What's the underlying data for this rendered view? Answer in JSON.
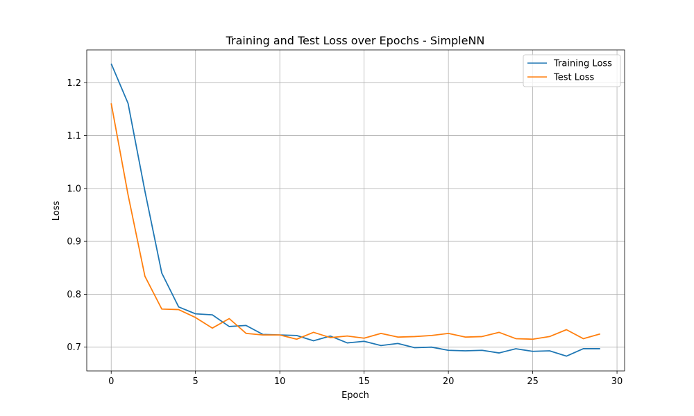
{
  "chart_data": {
    "type": "line",
    "title": "Training and Test Loss over Epochs - SimpleNN",
    "xlabel": "Epoch",
    "ylabel": "Loss",
    "xlim": [
      -1.45,
      30.45
    ],
    "ylim": [
      0.655,
      1.262
    ],
    "xticks": [
      0,
      5,
      10,
      15,
      20,
      25,
      30
    ],
    "yticks": [
      0.7,
      0.8,
      0.9,
      1.0,
      1.1,
      1.2
    ],
    "ytick_labels": [
      "0.7",
      "0.8",
      "0.9",
      "1.0",
      "1.1",
      "1.2"
    ],
    "grid": true,
    "legend_position": "top-right",
    "x": [
      0,
      1,
      2,
      3,
      4,
      5,
      6,
      7,
      8,
      9,
      10,
      11,
      12,
      13,
      14,
      15,
      16,
      17,
      18,
      19,
      20,
      21,
      22,
      23,
      24,
      25,
      26,
      27,
      28,
      29
    ],
    "series": [
      {
        "name": "Training Loss",
        "color": "#1f77b4",
        "values": [
          1.236,
          1.161,
          0.995,
          0.84,
          0.776,
          0.763,
          0.761,
          0.739,
          0.741,
          0.724,
          0.723,
          0.722,
          0.712,
          0.721,
          0.708,
          0.711,
          0.703,
          0.707,
          0.699,
          0.7,
          0.694,
          0.693,
          0.694,
          0.689,
          0.697,
          0.692,
          0.693,
          0.683,
          0.697,
          0.697
        ]
      },
      {
        "name": "Test Loss",
        "color": "#ff7f0e",
        "values": [
          1.161,
          0.988,
          0.834,
          0.772,
          0.771,
          0.756,
          0.736,
          0.754,
          0.726,
          0.723,
          0.723,
          0.715,
          0.728,
          0.718,
          0.721,
          0.717,
          0.726,
          0.719,
          0.72,
          0.722,
          0.726,
          0.719,
          0.72,
          0.728,
          0.716,
          0.715,
          0.72,
          0.733,
          0.716,
          0.725
        ]
      }
    ]
  }
}
